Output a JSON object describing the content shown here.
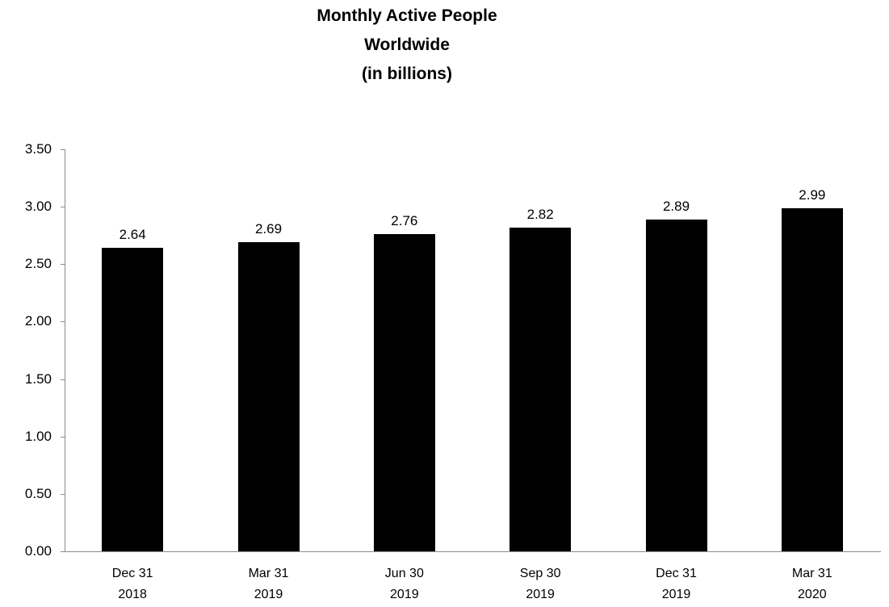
{
  "chart_data": {
    "type": "bar",
    "title": "Monthly Active People Worldwide (in billions)",
    "title_lines": [
      "Monthly Active People",
      "Worldwide",
      "(in billions)"
    ],
    "categories": [
      [
        "Dec 31",
        "2018"
      ],
      [
        "Mar 31",
        "2019"
      ],
      [
        "Jun 30",
        "2019"
      ],
      [
        "Sep 30",
        "2019"
      ],
      [
        "Dec 31",
        "2019"
      ],
      [
        "Mar 31",
        "2020"
      ]
    ],
    "values": [
      2.64,
      2.69,
      2.76,
      2.82,
      2.89,
      2.99
    ],
    "value_labels": [
      "2.64",
      "2.69",
      "2.76",
      "2.82",
      "2.89",
      "2.99"
    ],
    "xlabel": "",
    "ylabel": "",
    "ylim": [
      0,
      3.5
    ],
    "ytick_step": 0.5,
    "y_tick_labels": [
      "0.00",
      "0.50",
      "1.00",
      "1.50",
      "2.00",
      "2.50",
      "3.00",
      "3.50"
    ],
    "bar_color": "#000000",
    "axis_color": "#8c8c8c",
    "grid": false,
    "legend_position": "none",
    "value_labels_shown": true
  }
}
